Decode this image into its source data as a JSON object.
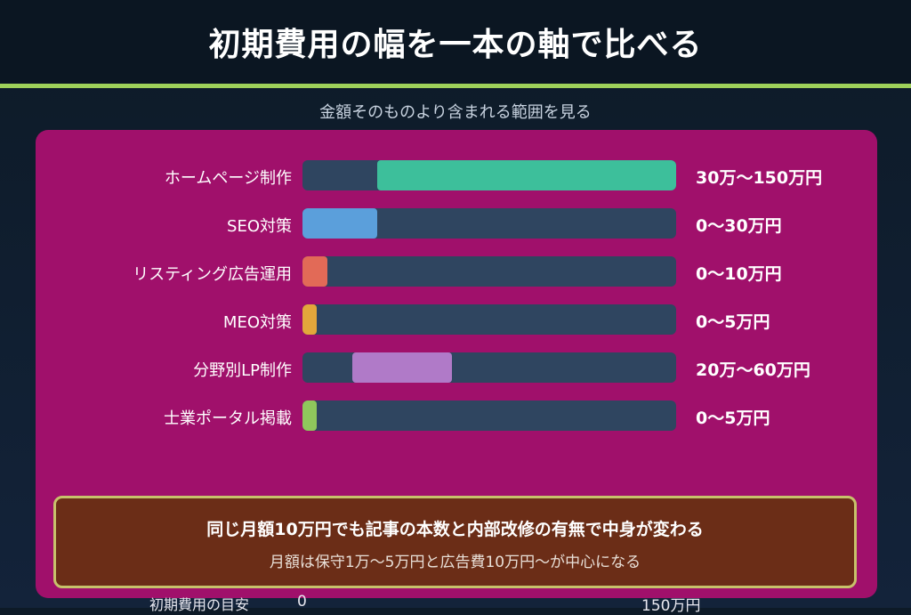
{
  "header": {
    "title": "初期費用の幅を一本の軸で比べる"
  },
  "subtitle": "金額そのものより含まれる範囲を見る",
  "colors": {
    "accent_line": "#9fd15a",
    "panel": "#a0106b",
    "track": "#2f4560",
    "note_bg": "#6b2d17",
    "note_border": "#c7c26a"
  },
  "chart_data": {
    "type": "bar",
    "orientation": "horizontal",
    "subtype": "range",
    "xlim": [
      0,
      150
    ],
    "unit": "万円",
    "categories": [
      "ホームページ制作",
      "SEO対策",
      "リスティング広告運用",
      "MEO対策",
      "分野別LP制作",
      "士業ポータル掲載"
    ],
    "ranges": [
      {
        "min": 30,
        "max": 150,
        "label": "30万〜150万円",
        "color": "#3dbf9b"
      },
      {
        "min": 0,
        "max": 30,
        "label": "0〜30万円",
        "color": "#5b9fdb"
      },
      {
        "min": 0,
        "max": 10,
        "label": "0〜10万円",
        "color": "#e26a57"
      },
      {
        "min": 0,
        "max": 5,
        "label": "0〜5万円",
        "color": "#e3a73b"
      },
      {
        "min": 20,
        "max": 60,
        "label": "20万〜60万円",
        "color": "#b07ac8"
      },
      {
        "min": 0,
        "max": 5,
        "label": "0〜5万円",
        "color": "#8fc75c"
      }
    ],
    "axis": {
      "caption": "初期費用の目安",
      "tick_labels": [
        "0",
        "150万円"
      ]
    }
  },
  "note": {
    "main": "同じ月額10万円でも記事の本数と内部改修の有無で中身が変わる",
    "sub": "月額は保守1万〜5万円と広告費10万円〜が中心になる"
  }
}
